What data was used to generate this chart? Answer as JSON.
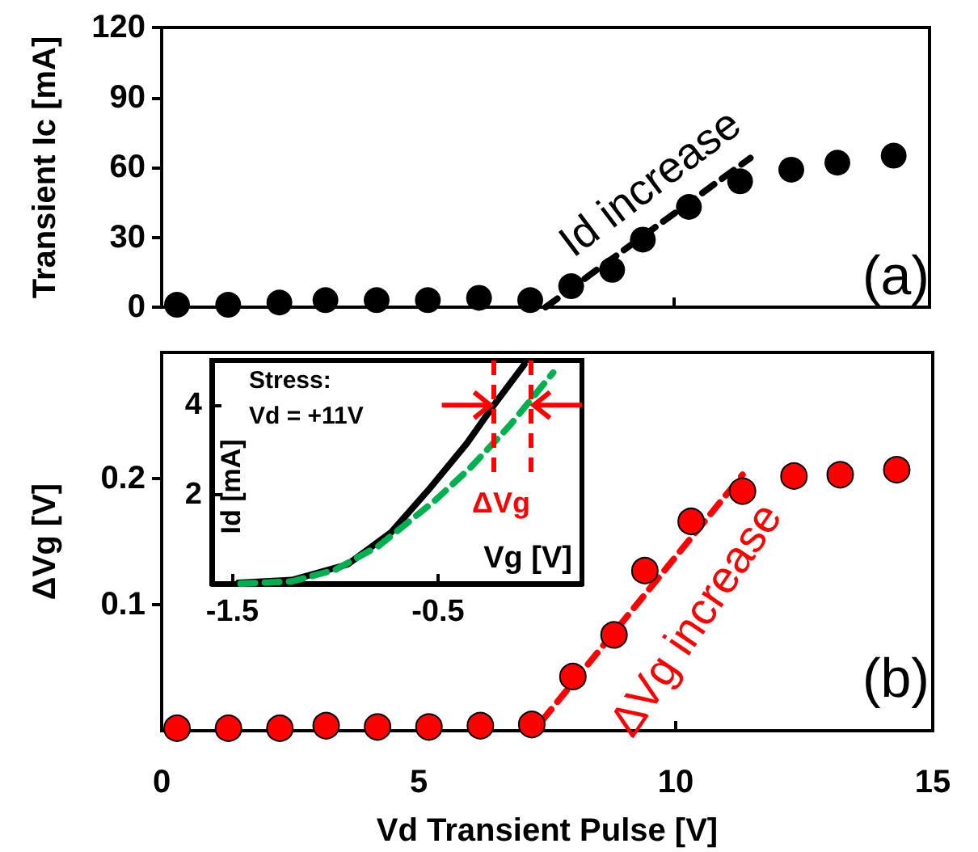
{
  "chart_data": [
    {
      "type": "scatter",
      "ylabel": "Transient Ic [mA]",
      "xlim": [
        0,
        15
      ],
      "xticks": [
        0,
        5,
        10,
        15
      ],
      "ylim": [
        0,
        120
      ],
      "yticks": [
        0,
        30,
        60,
        90,
        120
      ],
      "tick_labels": "y",
      "marker": "circle",
      "grid": false,
      "series": [
        {
          "color": "#000000",
          "x": [
            0.3,
            1.3,
            2.3,
            3.2,
            4.2,
            5.2,
            6.2,
            7.2,
            8.0,
            8.8,
            9.4,
            10.3,
            11.3,
            12.3,
            13.2,
            14.3
          ],
          "values": [
            1,
            1,
            2,
            3,
            3,
            3,
            4,
            3,
            9,
            16,
            29,
            43,
            54,
            59,
            62,
            65
          ]
        },
        {
          "type": "line",
          "color": "#000000",
          "line_style": "dashed",
          "marker": "none",
          "x": [
            7.5,
            11.5
          ],
          "values": [
            0,
            64
          ]
        }
      ],
      "annotations": [
        "Id increase",
        "(a)"
      ]
    },
    {
      "type": "scatter",
      "xlabel": "Vd Transient Pulse [V]",
      "ylabel": "ΔVg [V]",
      "xlim": [
        0,
        15
      ],
      "xticks": [
        0,
        5,
        10,
        15
      ],
      "ylim": [
        0,
        0.3
      ],
      "yticks": [
        0.1,
        0.2
      ],
      "marker": "circle",
      "grid": false,
      "series": [
        {
          "color": "#ff0000",
          "x": [
            0.3,
            1.3,
            2.3,
            3.2,
            4.2,
            5.2,
            6.2,
            7.2,
            8.0,
            8.8,
            9.4,
            10.3,
            11.3,
            12.3,
            13.2,
            14.3
          ],
          "values": [
            0.002,
            0.002,
            0.002,
            0.004,
            0.003,
            0.003,
            0.004,
            0.005,
            0.043,
            0.076,
            0.127,
            0.166,
            0.19,
            0.202,
            0.203,
            0.207
          ]
        },
        {
          "type": "line",
          "color": "#ff0000",
          "line_style": "dashed",
          "marker": "none",
          "x": [
            7.4,
            11.3
          ],
          "values": [
            0.008,
            0.203
          ]
        }
      ],
      "annotations": [
        "ΔVg increase",
        "(b)"
      ]
    },
    {
      "type": "line",
      "xlabel": "Vg [V]",
      "ylabel": "Id [mA]",
      "xlim": [
        -1.6,
        0.2
      ],
      "xticks": [
        -1.5,
        -0.5
      ],
      "ylim": [
        0,
        5
      ],
      "yticks": [
        2,
        4
      ],
      "marker": "none",
      "grid": false,
      "series": [
        {
          "color": "#000000",
          "line_style": "solid",
          "x": [
            -1.47,
            -1.21,
            -0.94,
            -0.73,
            -0.55,
            -0.36,
            -0.23,
            -0.08
          ],
          "values": [
            0.02,
            0.08,
            0.43,
            1.14,
            2.08,
            3.14,
            3.99,
            4.91
          ]
        },
        {
          "color": "#00b050",
          "line_style": "dashed",
          "x": [
            -1.46,
            -1.21,
            -1.0,
            -0.79,
            -0.52,
            -0.34,
            -0.15,
            0.06
          ],
          "values": [
            0,
            0.05,
            0.31,
            0.84,
            1.84,
            2.61,
            3.55,
            4.73
          ]
        }
      ],
      "ref_lines": [
        {
          "axis": "x",
          "value": -0.23,
          "color": "#ff0000",
          "line_style": "dashed"
        },
        {
          "axis": "x",
          "value": -0.05,
          "color": "#ff0000",
          "line_style": "dashed"
        }
      ],
      "annotations": [
        "Stress:",
        "Vd = +11V",
        "ΔVg"
      ]
    }
  ]
}
